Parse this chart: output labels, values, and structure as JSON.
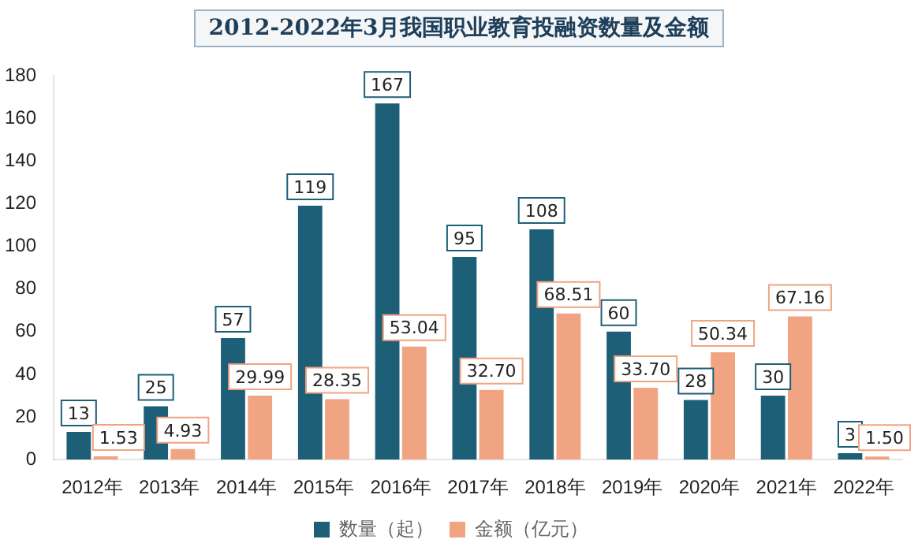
{
  "chart_data": {
    "type": "bar",
    "title": "2012-2022年3月我国职业教育投融资数量及金额",
    "categories": [
      "2012年",
      "2013年",
      "2014年",
      "2015年",
      "2016年",
      "2017年",
      "2018年",
      "2019年",
      "2020年",
      "2021年",
      "2022年"
    ],
    "series": [
      {
        "name": "数量（起）",
        "color": "#1e5f78",
        "values": [
          13,
          25,
          57,
          119,
          167,
          95,
          108,
          60,
          28,
          30,
          3
        ],
        "value_labels": [
          "13",
          "25",
          "57",
          "119",
          "167",
          "95",
          "108",
          "60",
          "28",
          "30",
          "3"
        ]
      },
      {
        "name": "金额（亿元）",
        "color": "#f0a482",
        "values": [
          1.53,
          4.93,
          29.99,
          28.35,
          53.04,
          32.7,
          68.51,
          33.7,
          50.34,
          67.16,
          1.5
        ],
        "value_labels": [
          "1.53",
          "4.93",
          "29.99",
          "28.35",
          "53.04",
          "32.70",
          "68.51",
          "33.70",
          "50.34",
          "67.16",
          "1.50"
        ]
      }
    ],
    "ylim": [
      0,
      180
    ],
    "yticks": [
      0,
      20,
      40,
      60,
      80,
      100,
      120,
      140,
      160,
      180
    ],
    "grid": false,
    "legend": "bottom"
  }
}
